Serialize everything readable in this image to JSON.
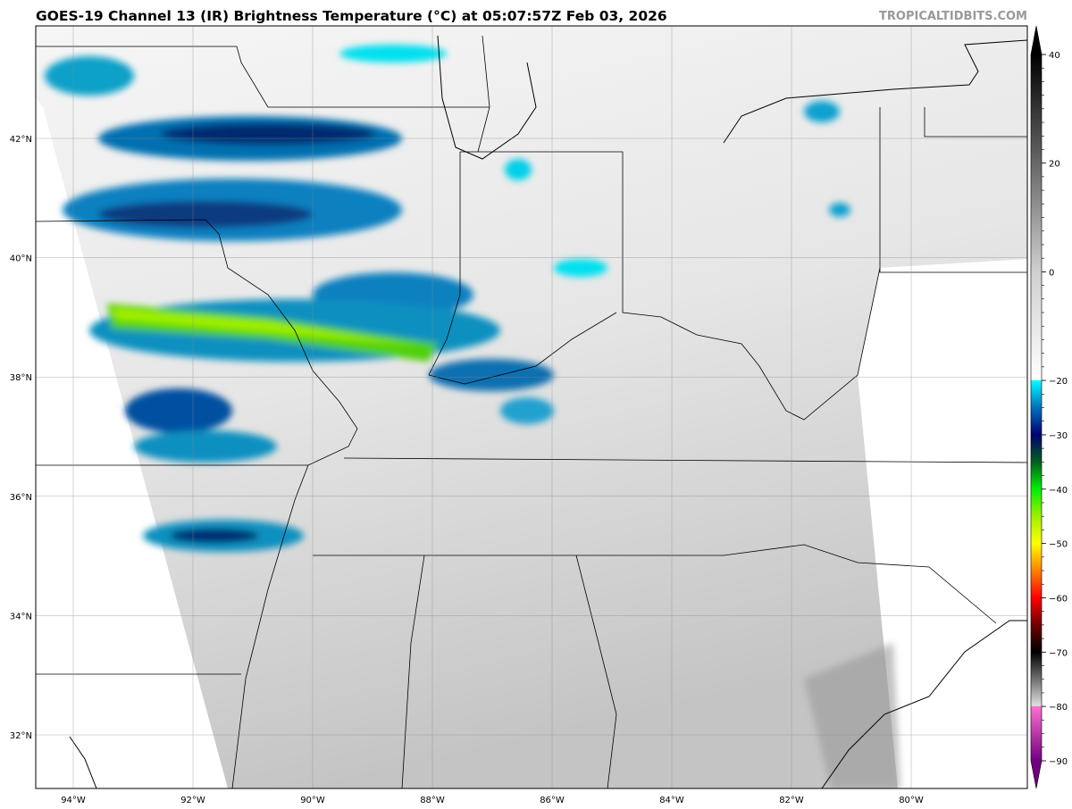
{
  "title": "GOES-19 Channel 13 (IR) Brightness Temperature (°C) at 05:07:57Z Feb 03, 2026",
  "watermark": "TROPICALTIDBITS.COM",
  "lon_ticks": [
    "94°W",
    "92°W",
    "90°W",
    "88°W",
    "86°W",
    "84°W",
    "82°W",
    "80°W"
  ],
  "lat_ticks": [
    "42°N",
    "40°N",
    "38°N",
    "36°N",
    "34°N",
    "32°N"
  ],
  "colorbar": {
    "ticks": [
      "40",
      "20",
      "0",
      "−20",
      "−30",
      "−40",
      "−50",
      "−60",
      "−70",
      "−80",
      "−90"
    ],
    "tick_values": [
      40,
      20,
      0,
      -20,
      -30,
      -40,
      -50,
      -60,
      -70,
      -80,
      -90
    ],
    "range": [
      -90,
      40
    ],
    "stops": [
      {
        "v": 40,
        "c": "#000000"
      },
      {
        "v": 0,
        "c": "#cfcfcf"
      },
      {
        "v": -19.9,
        "c": "#ffffff"
      },
      {
        "v": -20,
        "c": "#00ffff"
      },
      {
        "v": -25,
        "c": "#0070c0"
      },
      {
        "v": -30,
        "c": "#000070"
      },
      {
        "v": -35,
        "c": "#006020"
      },
      {
        "v": -40,
        "c": "#00f000"
      },
      {
        "v": -45,
        "c": "#a0f000"
      },
      {
        "v": -50,
        "c": "#ffff00"
      },
      {
        "v": -55,
        "c": "#ff8000"
      },
      {
        "v": -60,
        "c": "#ff0000"
      },
      {
        "v": -65,
        "c": "#700000"
      },
      {
        "v": -70,
        "c": "#000000"
      },
      {
        "v": -79.9,
        "c": "#e0e0e0"
      },
      {
        "v": -80,
        "c": "#ff70d0"
      },
      {
        "v": -90,
        "c": "#700080"
      }
    ]
  }
}
